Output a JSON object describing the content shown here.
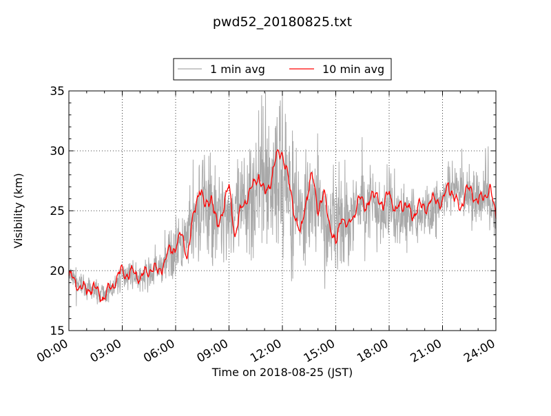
{
  "colors": {
    "one_min": "#a9a9a9",
    "ten_min": "#ff0000",
    "frame": "#000000",
    "grid": "#000000"
  },
  "chart_data": {
    "type": "line",
    "title": "pwd52_20180825.txt",
    "xlabel": "Time on 2018-08-25 (JST)",
    "ylabel": "Visibility (km)",
    "xlim": [
      "00:00",
      "24:00"
    ],
    "ylim": [
      15,
      35
    ],
    "x_ticks": [
      "00:00",
      "03:00",
      "06:00",
      "09:00",
      "12:00",
      "15:00",
      "18:00",
      "21:00",
      "24:00"
    ],
    "y_ticks": [
      "15",
      "20",
      "25",
      "30",
      "35"
    ],
    "grid": true,
    "legend": {
      "placement": "top-center-outside",
      "columns": 2
    },
    "series": [
      {
        "name": "1 min avg",
        "color": "#a9a9a9",
        "x": [
          "00:00",
          "00:30",
          "01:00",
          "01:30",
          "02:00",
          "02:30",
          "03:00",
          "03:30",
          "04:00",
          "04:30",
          "05:00",
          "05:30",
          "06:00",
          "06:30",
          "07:00",
          "07:30",
          "08:00",
          "08:30",
          "09:00",
          "09:30",
          "10:00",
          "10:30",
          "11:00",
          "11:30",
          "12:00",
          "12:30",
          "13:00",
          "13:30",
          "14:00",
          "14:30",
          "15:00",
          "15:30",
          "16:00",
          "16:30",
          "17:00",
          "17:30",
          "18:00",
          "18:30",
          "19:00",
          "19:30",
          "20:00",
          "20:30",
          "21:00",
          "21:30",
          "22:00",
          "22:30",
          "23:00",
          "23:30",
          "24:00"
        ],
        "y": [
          19.5,
          19.0,
          18.5,
          18.3,
          18.0,
          18.5,
          19.5,
          19.8,
          19.3,
          19.6,
          20.0,
          21.0,
          22.0,
          22.0,
          23.5,
          25.5,
          25.5,
          24.5,
          25.0,
          24.5,
          26.0,
          27.0,
          27.5,
          27.5,
          28.0,
          26.0,
          25.0,
          25.0,
          25.5,
          23.0,
          24.0,
          24.0,
          25.0,
          25.5,
          25.5,
          24.5,
          25.5,
          24.5,
          24.8,
          24.5,
          25.0,
          25.0,
          26.0,
          26.5,
          26.5,
          26.5,
          26.0,
          26.5,
          24.5
        ],
        "spread": [
          1.5,
          1.5,
          1.2,
          1.2,
          1.2,
          1.3,
          1.5,
          1.5,
          1.5,
          1.8,
          2.0,
          2.5,
          3.0,
          4.0,
          6.0,
          7.0,
          7.0,
          6.0,
          5.0,
          6.0,
          7.0,
          8.0,
          8.0,
          9.0,
          9.0,
          7.0,
          6.0,
          6.0,
          5.5,
          5.5,
          6.0,
          5.0,
          4.5,
          4.5,
          4.5,
          4.0,
          4.0,
          4.0,
          3.5,
          3.5,
          3.5,
          3.5,
          3.5,
          3.5,
          3.5,
          3.5,
          3.5,
          3.5,
          3.0
        ]
      },
      {
        "name": "10 min avg",
        "color": "#ff0000",
        "x": [
          "00:00",
          "00:20",
          "00:40",
          "01:00",
          "01:20",
          "01:40",
          "02:00",
          "02:20",
          "02:40",
          "03:00",
          "03:20",
          "03:40",
          "04:00",
          "04:20",
          "04:40",
          "05:00",
          "05:20",
          "05:40",
          "06:00",
          "06:20",
          "06:40",
          "07:00",
          "07:20",
          "07:40",
          "08:00",
          "08:20",
          "08:40",
          "09:00",
          "09:20",
          "09:40",
          "10:00",
          "10:20",
          "10:40",
          "11:00",
          "11:20",
          "11:40",
          "12:00",
          "12:20",
          "12:40",
          "13:00",
          "13:20",
          "13:40",
          "14:00",
          "14:20",
          "14:40",
          "15:00",
          "15:20",
          "15:40",
          "16:00",
          "16:20",
          "16:40",
          "17:00",
          "17:20",
          "17:40",
          "18:00",
          "18:20",
          "18:40",
          "19:00",
          "19:20",
          "19:40",
          "20:00",
          "20:20",
          "20:40",
          "21:00",
          "21:20",
          "21:40",
          "22:00",
          "22:20",
          "22:40",
          "23:00",
          "23:20",
          "23:40",
          "24:00"
        ],
        "y": [
          19.7,
          19.1,
          18.6,
          18.4,
          18.6,
          18.1,
          17.7,
          18.6,
          19.3,
          20.0,
          19.6,
          19.9,
          19.4,
          19.8,
          20.3,
          19.9,
          20.6,
          21.7,
          22.0,
          23.0,
          21.2,
          24.5,
          27.0,
          25.2,
          26.3,
          23.5,
          25.3,
          27.0,
          23.0,
          25.0,
          26.1,
          27.0,
          28.0,
          26.3,
          27.5,
          29.5,
          30.0,
          27.5,
          25.0,
          22.8,
          26.0,
          28.0,
          25.2,
          26.3,
          24.0,
          22.0,
          24.7,
          23.5,
          24.7,
          26.0,
          25.5,
          26.0,
          26.5,
          25.0,
          27.0,
          24.6,
          25.8,
          25.2,
          24.6,
          25.4,
          25.2,
          25.7,
          26.0,
          25.5,
          27.3,
          26.0,
          25.2,
          26.8,
          26.5,
          25.8,
          26.2,
          26.9,
          24.5
        ]
      }
    ]
  }
}
